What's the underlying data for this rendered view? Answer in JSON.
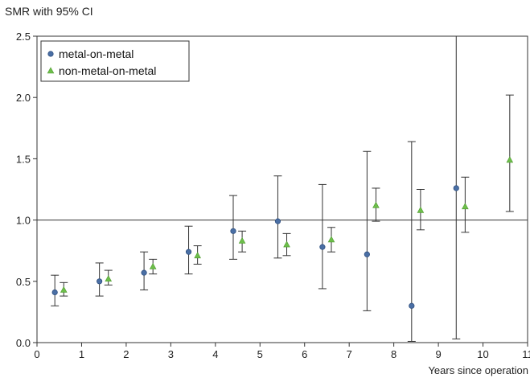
{
  "chart_data": {
    "type": "scatter",
    "ylabel": "SMR with 95% CI",
    "xlabel": "Years since operation",
    "xlim": [
      0,
      11
    ],
    "ylim": [
      0,
      2.5
    ],
    "xticks": [
      "0",
      "1",
      "2",
      "3",
      "4",
      "5",
      "6",
      "7",
      "8",
      "9",
      "10",
      "11"
    ],
    "yticks": [
      "0.0",
      "0.5",
      "1.0",
      "1.5",
      "2.0",
      "2.5"
    ],
    "reference_line": 1.0,
    "legend_position": "top-left",
    "series": [
      {
        "name": "metal-on-metal",
        "marker": "circle",
        "color": "#4a6fa5",
        "points": [
          {
            "x": 0.4,
            "y": 0.41,
            "lower": 0.3,
            "upper": 0.55
          },
          {
            "x": 1.4,
            "y": 0.5,
            "lower": 0.38,
            "upper": 0.65
          },
          {
            "x": 2.4,
            "y": 0.57,
            "lower": 0.43,
            "upper": 0.74
          },
          {
            "x": 3.4,
            "y": 0.74,
            "lower": 0.56,
            "upper": 0.95
          },
          {
            "x": 4.4,
            "y": 0.91,
            "lower": 0.68,
            "upper": 1.2
          },
          {
            "x": 5.4,
            "y": 0.99,
            "lower": 0.69,
            "upper": 1.36
          },
          {
            "x": 6.4,
            "y": 0.78,
            "lower": 0.44,
            "upper": 1.29
          },
          {
            "x": 7.4,
            "y": 0.72,
            "lower": 0.26,
            "upper": 1.56
          },
          {
            "x": 8.4,
            "y": 0.3,
            "lower": 0.01,
            "upper": 1.64
          },
          {
            "x": 9.4,
            "y": 1.26,
            "lower": 0.03,
            "upper": 2.55
          }
        ]
      },
      {
        "name": "non-metal-on-metal",
        "marker": "triangle",
        "color": "#6dbf4a",
        "points": [
          {
            "x": 0.6,
            "y": 0.43,
            "lower": 0.38,
            "upper": 0.49
          },
          {
            "x": 1.6,
            "y": 0.52,
            "lower": 0.47,
            "upper": 0.59
          },
          {
            "x": 2.6,
            "y": 0.62,
            "lower": 0.56,
            "upper": 0.68
          },
          {
            "x": 3.6,
            "y": 0.71,
            "lower": 0.64,
            "upper": 0.79
          },
          {
            "x": 4.6,
            "y": 0.83,
            "lower": 0.74,
            "upper": 0.91
          },
          {
            "x": 5.6,
            "y": 0.8,
            "lower": 0.71,
            "upper": 0.89
          },
          {
            "x": 6.6,
            "y": 0.84,
            "lower": 0.74,
            "upper": 0.94
          },
          {
            "x": 7.6,
            "y": 1.12,
            "lower": 0.99,
            "upper": 1.26
          },
          {
            "x": 8.6,
            "y": 1.08,
            "lower": 0.92,
            "upper": 1.25
          },
          {
            "x": 9.6,
            "y": 1.11,
            "lower": 0.9,
            "upper": 1.35
          },
          {
            "x": 10.6,
            "y": 1.49,
            "lower": 1.07,
            "upper": 2.02
          }
        ]
      }
    ]
  }
}
